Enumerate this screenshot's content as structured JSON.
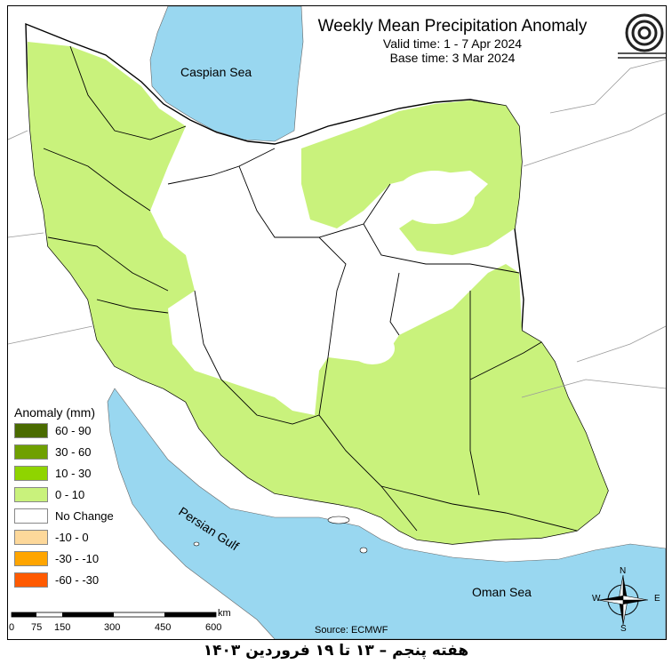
{
  "title": {
    "main": "Weekly Mean Precipitation Anomaly",
    "valid": "Valid time: 1 - 7 Apr 2024",
    "base": "Base time: 3 Mar 2024"
  },
  "labels": {
    "caspian": "Caspian Sea",
    "gulf": "Persian Gulf",
    "oman": "Oman Sea"
  },
  "legend": {
    "title": "Anomaly (mm)",
    "items": [
      {
        "label": "60 - 90",
        "color": "#4a6b00"
      },
      {
        "label": "30 - 60",
        "color": "#6fa000"
      },
      {
        "label": "10 - 30",
        "color": "#8fd400"
      },
      {
        "label": "0 - 10",
        "color": "#c9f27c"
      },
      {
        "label": "No Change",
        "color": "#ffffff"
      },
      {
        "label": "-10 - 0",
        "color": "#fdd89a"
      },
      {
        "label": "-30 - -10",
        "color": "#ffa500"
      },
      {
        "label": "-60 - -30",
        "color": "#ff5a00"
      }
    ]
  },
  "scale": {
    "ticks": [
      "0",
      "75",
      "150",
      "300",
      "450",
      "600"
    ],
    "unit": "km"
  },
  "source": "Source: ECMWF",
  "caption": "هفته پنجم – ۱۳ تا ۱۹ فروردین ۱۴۰۳",
  "compass": {
    "n": "N",
    "s": "S",
    "e": "E",
    "w": "W"
  },
  "colors": {
    "water": "#99d7f0",
    "land_anomaly": "#c9f27c",
    "border": "#000000",
    "neighbor_border": "#9a9a9a"
  }
}
